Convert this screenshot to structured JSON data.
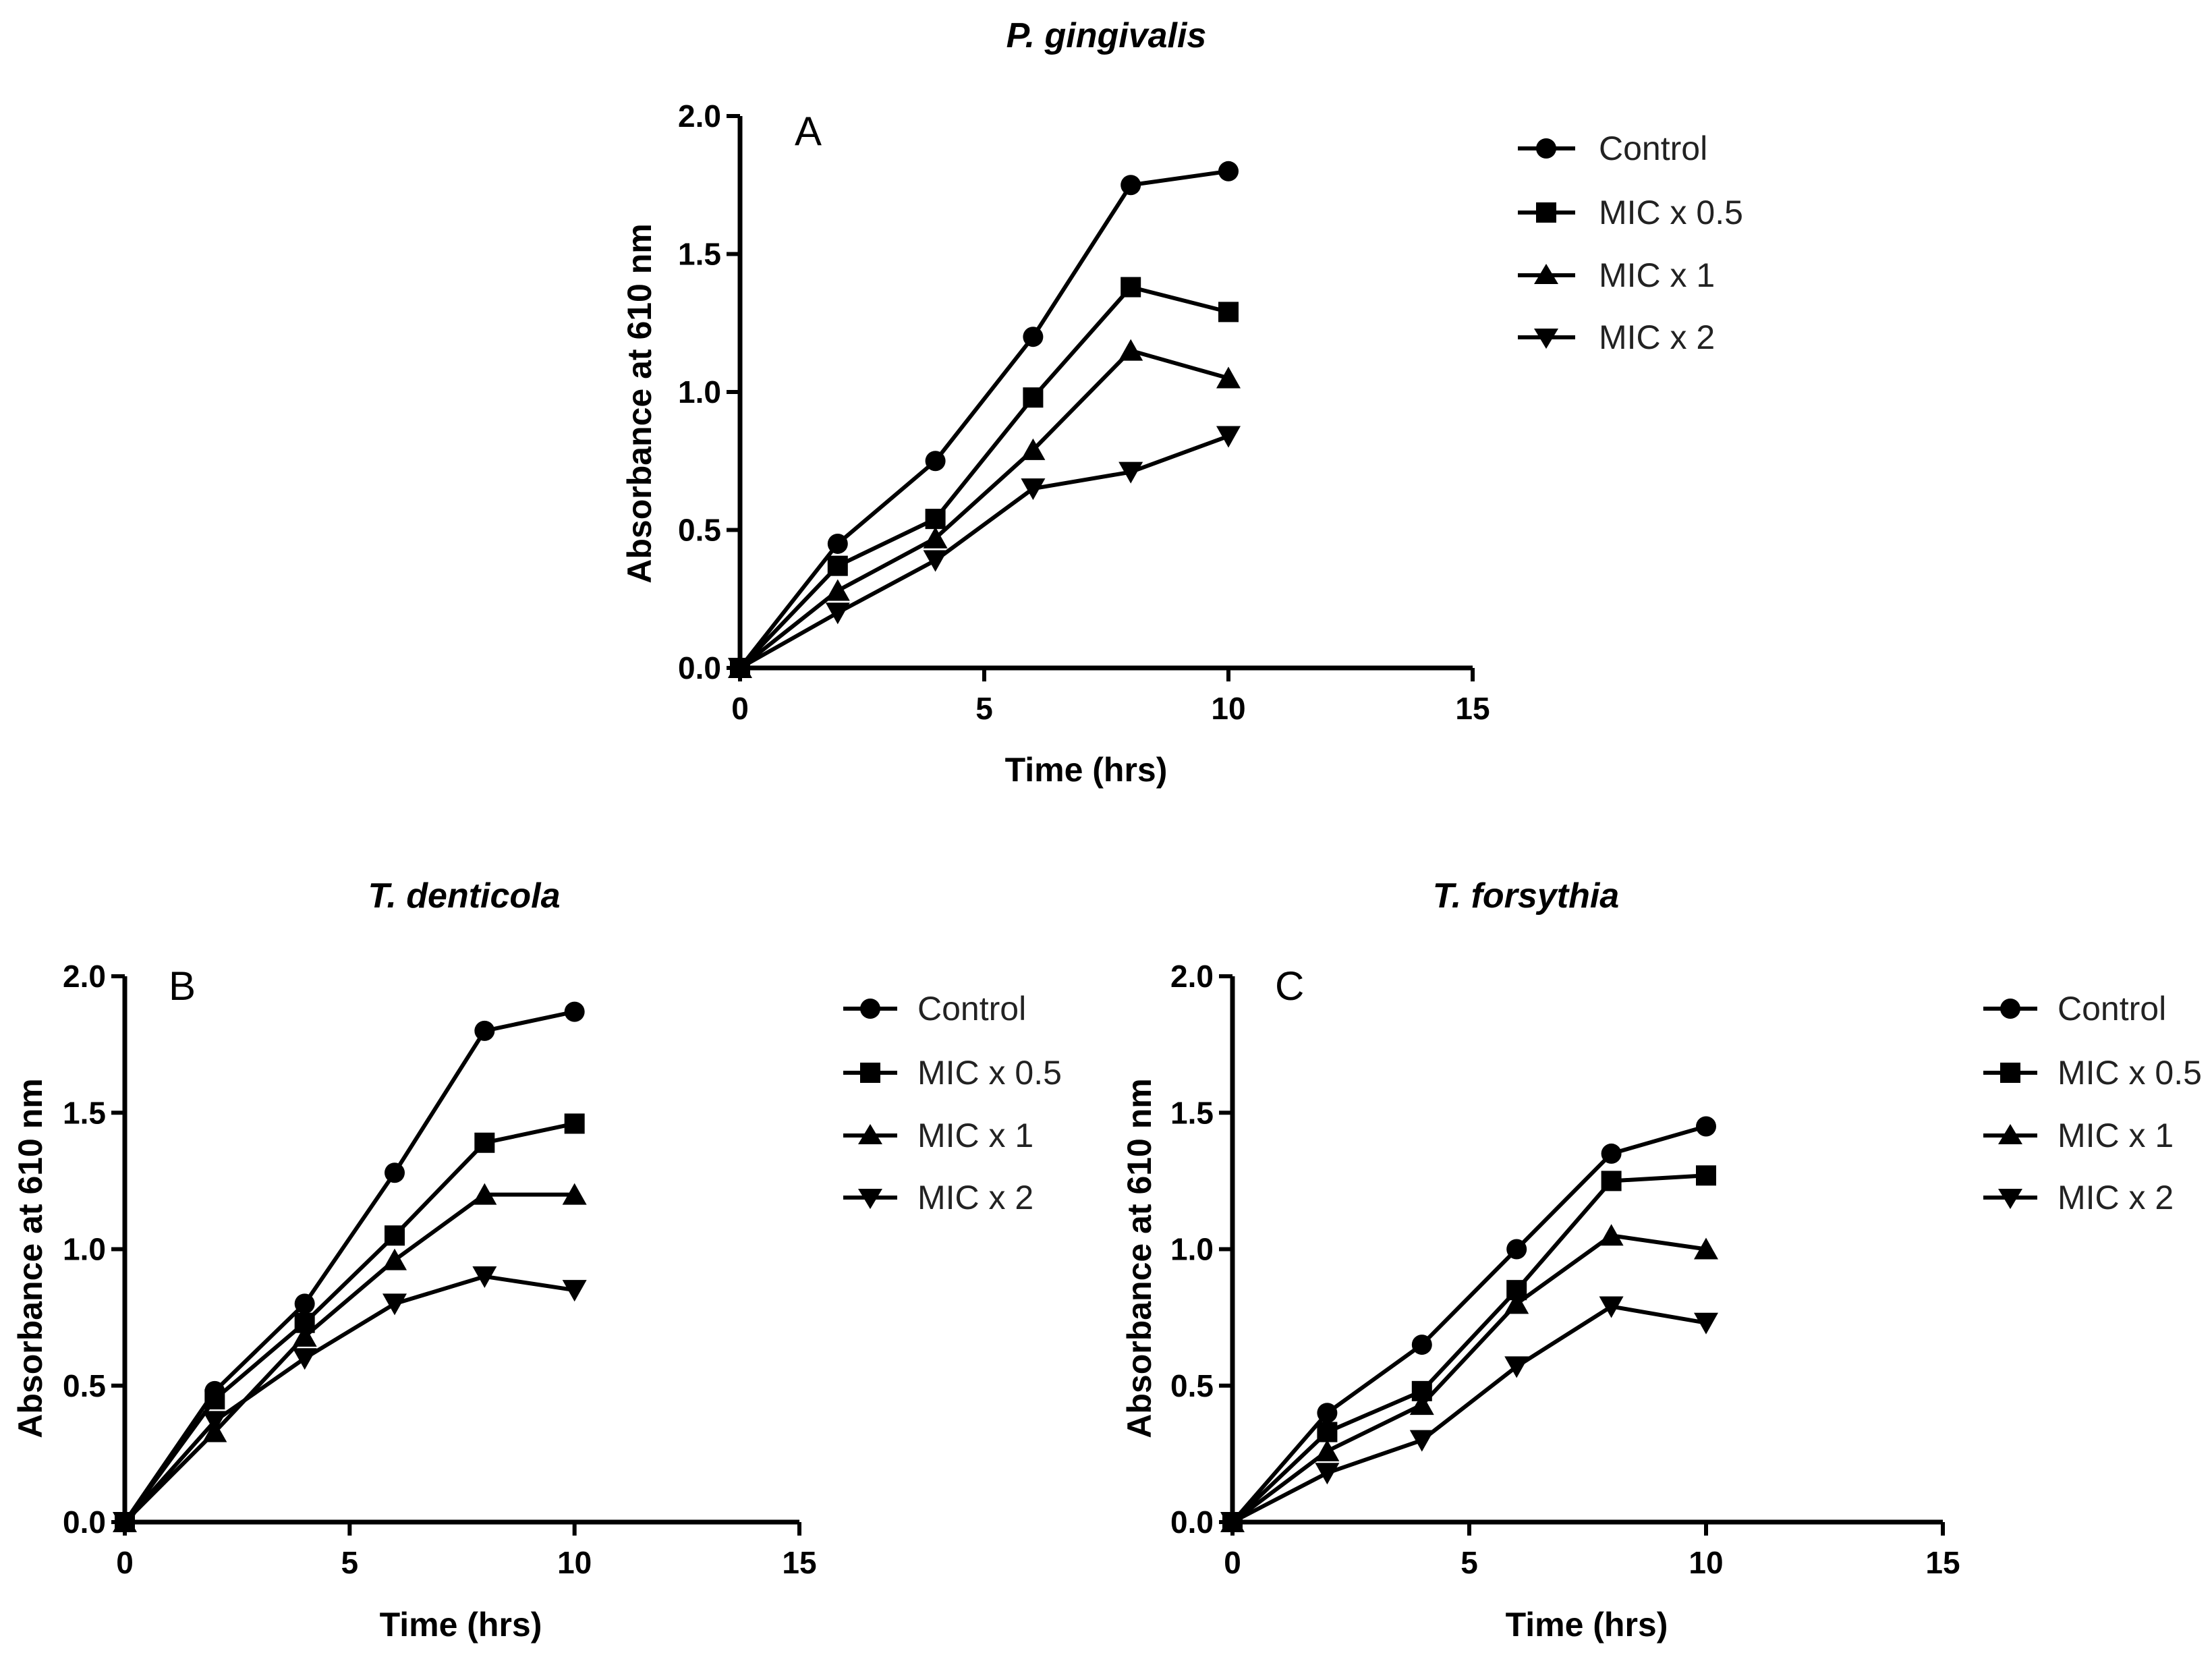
{
  "chart_data": [
    {
      "type": "line",
      "panel_label": "A",
      "title": "P. gingivalis",
      "xlabel": "Time (hrs)",
      "ylabel": "Absorbance at 610 nm",
      "xlim": [
        0,
        15
      ],
      "ylim": [
        0,
        2.0
      ],
      "xticks": [
        "0",
        "5",
        "10",
        "15"
      ],
      "yticks": [
        "0.0",
        "0.5",
        "1.0",
        "1.5",
        "2.0"
      ],
      "legend_position": "right",
      "x": [
        0,
        2,
        4,
        6,
        8,
        10
      ],
      "series": [
        {
          "name": "Control",
          "marker": "circle",
          "values": [
            0,
            0.45,
            0.75,
            1.2,
            1.75,
            1.8
          ]
        },
        {
          "name": "MIC x 0.5",
          "marker": "square",
          "values": [
            0,
            0.37,
            0.54,
            0.98,
            1.38,
            1.29
          ]
        },
        {
          "name": "MIC x 1",
          "marker": "triangle-up",
          "values": [
            0,
            0.28,
            0.47,
            0.79,
            1.15,
            1.05
          ]
        },
        {
          "name": "MIC x 2",
          "marker": "triangle-down",
          "values": [
            0,
            0.2,
            0.39,
            0.65,
            0.71,
            0.84
          ]
        }
      ]
    },
    {
      "type": "line",
      "panel_label": "B",
      "title": "T. denticola",
      "xlabel": "Time (hrs)",
      "ylabel": "Absorbance at 610 nm",
      "xlim": [
        0,
        15
      ],
      "ylim": [
        0,
        2.0
      ],
      "xticks": [
        "0",
        "5",
        "10",
        "15"
      ],
      "yticks": [
        "0.0",
        "0.5",
        "1.0",
        "1.5",
        "2.0"
      ],
      "legend_position": "right",
      "x": [
        0,
        2,
        4,
        6,
        8,
        10
      ],
      "series": [
        {
          "name": "Control",
          "marker": "circle",
          "values": [
            0,
            0.48,
            0.8,
            1.28,
            1.8,
            1.87
          ]
        },
        {
          "name": "MIC x 0.5",
          "marker": "square",
          "values": [
            0,
            0.45,
            0.73,
            1.05,
            1.39,
            1.46
          ]
        },
        {
          "name": "MIC x 1",
          "marker": "triangle-up",
          "values": [
            0,
            0.33,
            0.68,
            0.96,
            1.2,
            1.2
          ]
        },
        {
          "name": "MIC x 2",
          "marker": "triangle-down",
          "values": [
            0,
            0.37,
            0.6,
            0.8,
            0.9,
            0.85
          ]
        }
      ]
    },
    {
      "type": "line",
      "panel_label": "C",
      "title": "T. forsythia",
      "xlabel": "Time (hrs)",
      "ylabel": "Absorbance at 610 nm",
      "xlim": [
        0,
        15
      ],
      "ylim": [
        0,
        2.0
      ],
      "xticks": [
        "0",
        "5",
        "10",
        "15"
      ],
      "yticks": [
        "0.0",
        "0.5",
        "1.0",
        "1.5",
        "2.0"
      ],
      "legend_position": "right",
      "x": [
        0,
        2,
        4,
        6,
        8,
        10
      ],
      "series": [
        {
          "name": "Control",
          "marker": "circle",
          "values": [
            0,
            0.4,
            0.65,
            1.0,
            1.35,
            1.45
          ]
        },
        {
          "name": "MIC x 0.5",
          "marker": "square",
          "values": [
            0,
            0.33,
            0.48,
            0.85,
            1.25,
            1.27
          ]
        },
        {
          "name": "MIC x 1",
          "marker": "triangle-up",
          "values": [
            0,
            0.26,
            0.43,
            0.8,
            1.05,
            1.0
          ]
        },
        {
          "name": "MIC x 2",
          "marker": "triangle-down",
          "values": [
            0,
            0.18,
            0.3,
            0.57,
            0.79,
            0.73
          ]
        }
      ]
    }
  ]
}
